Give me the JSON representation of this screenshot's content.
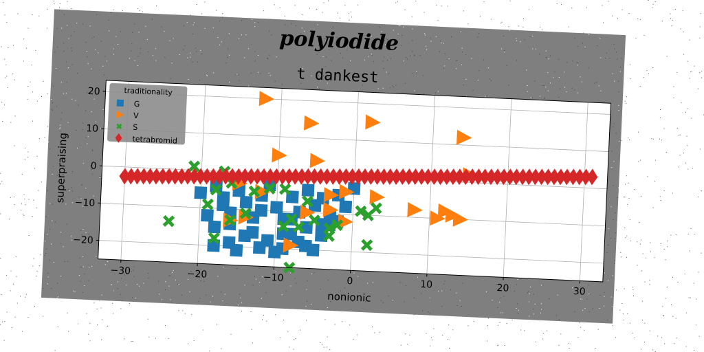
{
  "figure": {
    "suptitle": "polyiodide",
    "background": "#7f7f7f"
  },
  "chart_data": {
    "type": "scatter",
    "title": "t dankest",
    "xlabel": "nonionic",
    "ylabel": "superpraising",
    "xlim": [
      -33,
      33
    ],
    "ylim": [
      -25,
      23
    ],
    "xticks": [
      -30,
      -20,
      -10,
      0,
      10,
      20,
      30
    ],
    "yticks": [
      -20,
      -10,
      0,
      10,
      20
    ],
    "grid": true,
    "legend": {
      "title": "traditionality",
      "placement": "top-left"
    },
    "series": [
      {
        "name": "G",
        "marker": "square",
        "color": "#1f77b4",
        "points": [
          [
            -20,
            -6
          ],
          [
            -18,
            -4
          ],
          [
            -17,
            -9
          ],
          [
            -16,
            -11
          ],
          [
            -15,
            -5
          ],
          [
            -14,
            -8
          ],
          [
            -13,
            -12
          ],
          [
            -12,
            -6
          ],
          [
            -11,
            -3
          ],
          [
            -10,
            -9
          ],
          [
            -9,
            -12
          ],
          [
            -8,
            -6
          ],
          [
            -7,
            -10
          ],
          [
            -6,
            -4
          ],
          [
            -5,
            -8
          ],
          [
            -4,
            -6
          ],
          [
            -3,
            -11
          ],
          [
            -2,
            -5
          ],
          [
            -1,
            -8
          ],
          [
            0,
            -3
          ],
          [
            -19,
            -12
          ],
          [
            -18,
            -15
          ],
          [
            -16,
            -19
          ],
          [
            -15,
            -21
          ],
          [
            -14,
            -17
          ],
          [
            -12,
            -20
          ],
          [
            -11,
            -18
          ],
          [
            -10,
            -21
          ],
          [
            -9,
            -20
          ],
          [
            -8,
            -16
          ],
          [
            -7,
            -18
          ],
          [
            -6,
            -14
          ],
          [
            -5,
            -20
          ],
          [
            -4,
            -16
          ],
          [
            -3,
            -13
          ],
          [
            -18,
            -20
          ],
          [
            -16,
            -14
          ],
          [
            -13,
            -16
          ],
          [
            -9,
            -16
          ],
          [
            -6,
            -19
          ],
          [
            -2,
            -12
          ],
          [
            -17,
            -7
          ],
          [
            -12,
            -10
          ],
          [
            -8,
            -12
          ],
          [
            -4,
            -13
          ]
        ]
      },
      {
        "name": "V",
        "marker": "triangle-right",
        "color": "#ff7f0e",
        "points": [
          [
            -12,
            20
          ],
          [
            -6,
            14
          ],
          [
            2,
            15
          ],
          [
            14,
            12
          ],
          [
            -10,
            5
          ],
          [
            -5,
            4
          ],
          [
            15,
            2
          ],
          [
            -3,
            -5
          ],
          [
            -6,
            -10
          ],
          [
            -3,
            -9
          ],
          [
            -1,
            -12
          ],
          [
            3,
            -5
          ],
          [
            8,
            -8
          ],
          [
            11,
            -10
          ],
          [
            12,
            -8
          ],
          [
            13,
            -9
          ],
          [
            14,
            -10
          ],
          [
            -16,
            -13
          ],
          [
            -14,
            -12
          ],
          [
            -8,
            -19
          ],
          [
            -12,
            -5
          ],
          [
            -15,
            -3
          ],
          [
            -1,
            -4
          ]
        ]
      },
      {
        "name": "S",
        "marker": "x",
        "color": "#2ca02c",
        "points": [
          [
            -21,
            1
          ],
          [
            -17,
            0
          ],
          [
            -16,
            -3
          ],
          [
            -19,
            -9
          ],
          [
            -18,
            -5
          ],
          [
            -18,
            -18
          ],
          [
            -24,
            -14
          ],
          [
            -16,
            -13
          ],
          [
            -14,
            -11
          ],
          [
            -13,
            -5
          ],
          [
            -11,
            -4
          ],
          [
            -9,
            -4
          ],
          [
            -9,
            -14
          ],
          [
            -8,
            -12
          ],
          [
            -7,
            -14
          ],
          [
            -8,
            -25
          ],
          [
            -5,
            -12
          ],
          [
            -3,
            -14
          ],
          [
            -3,
            -16
          ],
          [
            -2,
            -13
          ],
          [
            1,
            -9
          ],
          [
            2,
            -10
          ],
          [
            3,
            -8
          ],
          [
            2,
            -18
          ],
          [
            -6,
            -7
          ]
        ]
      },
      {
        "name": "tetrabromid",
        "marker": "diamond",
        "color": "#d62728",
        "line": {
          "x_from": -30,
          "x_to": 31,
          "y_from": -2.5,
          "y_to": 3,
          "count": 75
        }
      }
    ]
  }
}
